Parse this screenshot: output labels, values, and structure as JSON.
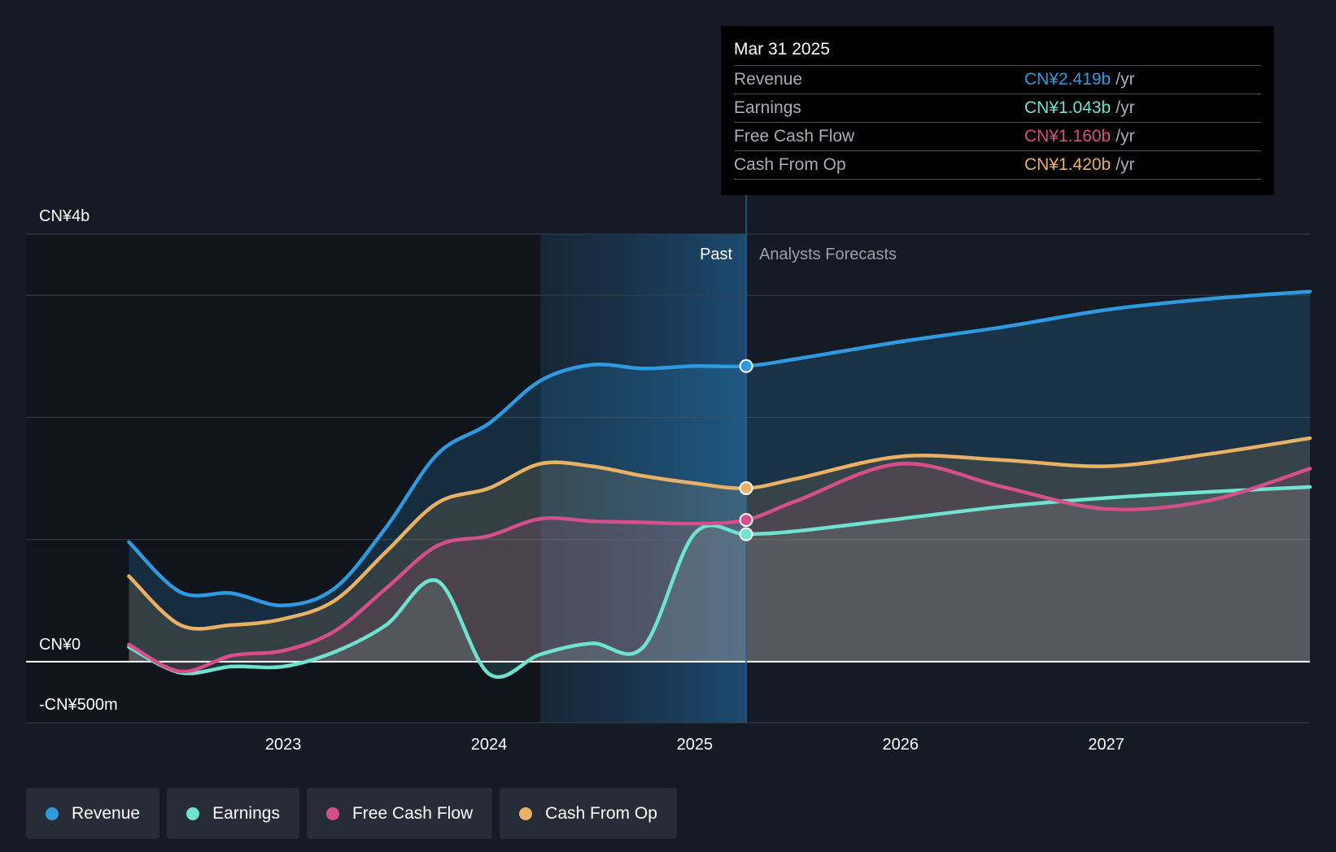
{
  "colors": {
    "revenue": "#2f9ae0",
    "earnings": "#6fe2d0",
    "free_cash_flow": "#d5508a",
    "cash_from_op": "#e8b166",
    "background": "#151b24"
  },
  "tooltip": {
    "date": "Mar 31 2025",
    "rows": [
      {
        "name": "Revenue",
        "value": "CN¥2.419b",
        "unit": "/yr"
      },
      {
        "name": "Earnings",
        "value": "CN¥1.043b",
        "unit": "/yr"
      },
      {
        "name": "Free Cash Flow",
        "value": "CN¥1.160b",
        "unit": "/yr"
      },
      {
        "name": "Cash From Op",
        "value": "CN¥1.420b",
        "unit": "/yr"
      }
    ]
  },
  "legend": [
    {
      "label": "Revenue",
      "color": "#2f9ae0"
    },
    {
      "label": "Earnings",
      "color": "#6fe2d0"
    },
    {
      "label": "Free Cash Flow",
      "color": "#d5508a"
    },
    {
      "label": "Cash From Op",
      "color": "#e8b166"
    }
  ],
  "chart_data": {
    "type": "line",
    "title": "",
    "xlabel": "",
    "ylabel": "",
    "x_ticks": [
      "2023",
      "2024",
      "2025",
      "2026",
      "2027"
    ],
    "x_tick_values": [
      2023,
      2024,
      2025,
      2026,
      2027
    ],
    "xlim": [
      2021.75,
      2027.99
    ],
    "ylim": [
      -0.5,
      3.5
    ],
    "y_tick_labels": [
      {
        "value": 3.5,
        "label": "CN¥4b"
      },
      {
        "value": 0,
        "label": "CN¥0"
      },
      {
        "value": -0.5,
        "label": "-CN¥500m"
      }
    ],
    "gridlines": [
      3.5,
      3.0,
      2.0,
      1.0,
      0,
      -0.5
    ],
    "past_label": "Past",
    "forecast_label": "Analysts Forecasts",
    "past_start": 2024.25,
    "current_date": 2025.25,
    "highlight_date": "Mar 31 2025",
    "series": [
      {
        "name": "Revenue",
        "key": "revenue",
        "points": [
          [
            2022.25,
            0.98
          ],
          [
            2022.5,
            0.57
          ],
          [
            2022.75,
            0.56
          ],
          [
            2023.0,
            0.46
          ],
          [
            2023.25,
            0.6
          ],
          [
            2023.5,
            1.1
          ],
          [
            2023.75,
            1.7
          ],
          [
            2024.0,
            1.95
          ],
          [
            2024.25,
            2.3
          ],
          [
            2024.5,
            2.43
          ],
          [
            2024.75,
            2.4
          ],
          [
            2025.0,
            2.42
          ],
          [
            2025.25,
            2.42
          ],
          [
            2025.5,
            2.48
          ],
          [
            2026.0,
            2.62
          ],
          [
            2026.5,
            2.74
          ],
          [
            2027.0,
            2.88
          ],
          [
            2027.5,
            2.97
          ],
          [
            2027.99,
            3.03
          ]
        ]
      },
      {
        "name": "Earnings",
        "key": "earnings",
        "points": [
          [
            2022.25,
            0.12
          ],
          [
            2022.5,
            -0.09
          ],
          [
            2022.75,
            -0.04
          ],
          [
            2023.0,
            -0.04
          ],
          [
            2023.25,
            0.08
          ],
          [
            2023.5,
            0.3
          ],
          [
            2023.75,
            0.66
          ],
          [
            2024.0,
            -0.1
          ],
          [
            2024.25,
            0.06
          ],
          [
            2024.5,
            0.15
          ],
          [
            2024.75,
            0.12
          ],
          [
            2025.0,
            1.05
          ],
          [
            2025.25,
            1.043
          ],
          [
            2025.5,
            1.07
          ],
          [
            2026.0,
            1.17
          ],
          [
            2026.5,
            1.27
          ],
          [
            2027.0,
            1.34
          ],
          [
            2027.5,
            1.39
          ],
          [
            2027.99,
            1.43
          ]
        ]
      },
      {
        "name": "Free Cash Flow",
        "key": "free_cash_flow",
        "points": [
          [
            2022.25,
            0.14
          ],
          [
            2022.5,
            -0.08
          ],
          [
            2022.75,
            0.05
          ],
          [
            2023.0,
            0.09
          ],
          [
            2023.25,
            0.25
          ],
          [
            2023.5,
            0.6
          ],
          [
            2023.75,
            0.95
          ],
          [
            2024.0,
            1.03
          ],
          [
            2024.25,
            1.17
          ],
          [
            2024.5,
            1.15
          ],
          [
            2024.75,
            1.14
          ],
          [
            2025.0,
            1.13
          ],
          [
            2025.25,
            1.16
          ],
          [
            2025.5,
            1.32
          ],
          [
            2026.0,
            1.62
          ],
          [
            2026.5,
            1.43
          ],
          [
            2027.0,
            1.25
          ],
          [
            2027.5,
            1.32
          ],
          [
            2027.99,
            1.58
          ]
        ]
      },
      {
        "name": "Cash From Op",
        "key": "cash_from_op",
        "points": [
          [
            2022.25,
            0.7
          ],
          [
            2022.5,
            0.3
          ],
          [
            2022.75,
            0.3
          ],
          [
            2023.0,
            0.35
          ],
          [
            2023.25,
            0.5
          ],
          [
            2023.5,
            0.9
          ],
          [
            2023.75,
            1.3
          ],
          [
            2024.0,
            1.42
          ],
          [
            2024.25,
            1.62
          ],
          [
            2024.5,
            1.6
          ],
          [
            2024.75,
            1.52
          ],
          [
            2025.0,
            1.46
          ],
          [
            2025.25,
            1.42
          ],
          [
            2025.5,
            1.5
          ],
          [
            2026.0,
            1.68
          ],
          [
            2026.5,
            1.65
          ],
          [
            2027.0,
            1.6
          ],
          [
            2027.5,
            1.7
          ],
          [
            2027.99,
            1.83
          ]
        ]
      }
    ]
  }
}
